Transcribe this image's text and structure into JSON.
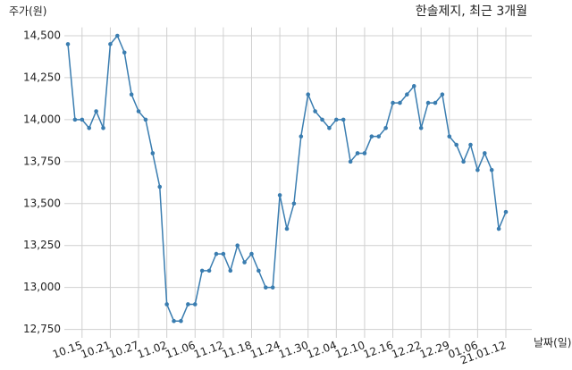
{
  "chart_data": {
    "type": "line",
    "title": "한솔제지, 최근 3개월",
    "ylabel": "주가(원)",
    "xlabel": "날짜(일)",
    "categories": [
      null,
      null,
      "10.15",
      null,
      null,
      null,
      "10.21",
      null,
      null,
      null,
      "10.27",
      null,
      null,
      null,
      "11.02",
      null,
      null,
      null,
      "11.06",
      null,
      null,
      null,
      "11.12",
      null,
      null,
      null,
      "11.18",
      null,
      null,
      null,
      "11.24",
      null,
      null,
      null,
      "11.30",
      null,
      null,
      null,
      "12.04",
      null,
      null,
      null,
      "12.10",
      null,
      null,
      null,
      "12.16",
      null,
      null,
      null,
      "12.22",
      null,
      null,
      null,
      "12.29",
      null,
      null,
      null,
      "01.06",
      null,
      null,
      null,
      "21.01.12"
    ],
    "series": [
      {
        "name": "주가",
        "color": "#3a7db0",
        "values": [
          14450,
          14000,
          14000,
          13950,
          14050,
          13950,
          14450,
          14500,
          14400,
          14150,
          14050,
          14000,
          13800,
          13600,
          12900,
          12800,
          12800,
          12900,
          12900,
          13100,
          13100,
          13200,
          13200,
          13100,
          13250,
          13150,
          13200,
          13100,
          13000,
          13000,
          13550,
          13350,
          13500,
          13900,
          14150,
          14050,
          14000,
          13950,
          14000,
          14000,
          13750,
          13800,
          13800,
          13900,
          13900,
          13950,
          14100,
          14100,
          14150,
          14200,
          13950,
          14100,
          14100,
          14150,
          13900,
          13850,
          13750,
          13850,
          13700,
          13800,
          13700,
          13350,
          13450
        ]
      }
    ],
    "ylim": [
      12700,
      14550
    ],
    "yticks": [
      {
        "value": 12750,
        "label": "12,750"
      },
      {
        "value": 13000,
        "label": "13,000"
      },
      {
        "value": 13250,
        "label": "13,250"
      },
      {
        "value": 13500,
        "label": "13,500"
      },
      {
        "value": 13750,
        "label": "13,750"
      },
      {
        "value": 14000,
        "label": "14,000"
      },
      {
        "value": 14250,
        "label": "14,250"
      },
      {
        "value": 14500,
        "label": "14,500"
      }
    ],
    "grid": true
  }
}
